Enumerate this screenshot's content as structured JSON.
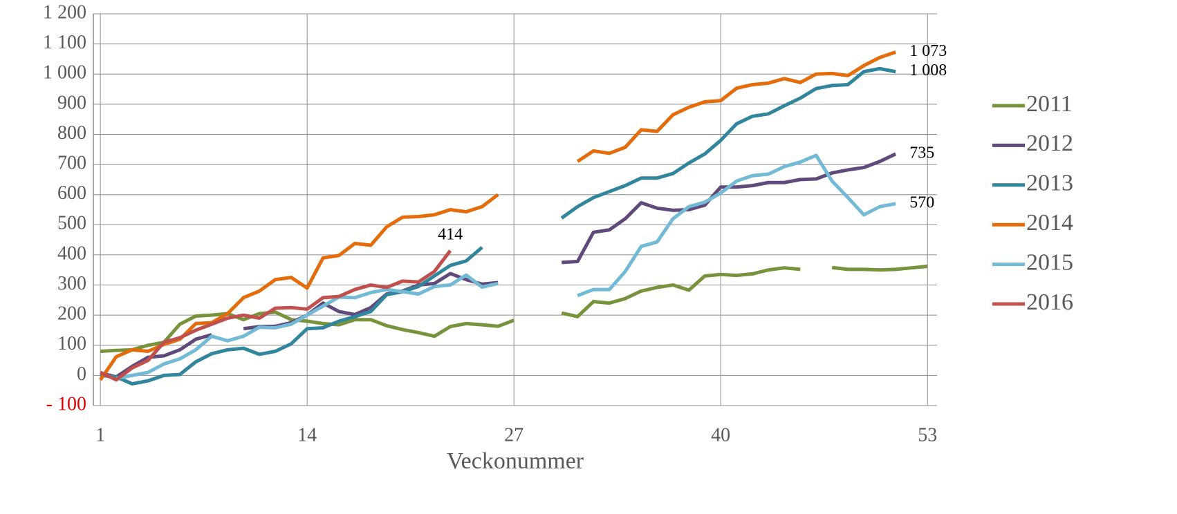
{
  "chart_data": {
    "type": "line",
    "x_label": "Veckonummer",
    "x": [
      1,
      2,
      3,
      4,
      5,
      6,
      7,
      8,
      9,
      10,
      11,
      12,
      13,
      14,
      15,
      16,
      17,
      18,
      19,
      20,
      21,
      22,
      23,
      24,
      25,
      26,
      27,
      28,
      29,
      30,
      31,
      32,
      33,
      34,
      35,
      36,
      37,
      38,
      39,
      40,
      41,
      42,
      43,
      44,
      45,
      46,
      47,
      48,
      49,
      50,
      51,
      52,
      53
    ],
    "xlim": [
      0.56,
      53.6
    ],
    "xticks": [
      1,
      14,
      27,
      40,
      53
    ],
    "ylim": [
      -100,
      1200
    ],
    "yticks": [
      {
        "value": -100,
        "label": "- 100"
      },
      0,
      100,
      200,
      300,
      400,
      500,
      600,
      700,
      800,
      900,
      {
        "value": 1000,
        "label": "1 000"
      },
      {
        "value": 1100,
        "label": "1 100"
      },
      {
        "value": 1200,
        "label": "1 200"
      }
    ],
    "negative_tick_color": "#e00000",
    "grid": true,
    "legend": "right",
    "series": [
      {
        "name": "2011",
        "color": "#77933c",
        "values": [
          80,
          83,
          85,
          100,
          110,
          170,
          197,
          200,
          205,
          185,
          205,
          210,
          185,
          180,
          172,
          168,
          185,
          185,
          165,
          152,
          142,
          130,
          162,
          172,
          168,
          163,
          183,
          null,
          null,
          207,
          195,
          245,
          240,
          255,
          280,
          292,
          300,
          283,
          330,
          335,
          332,
          337,
          350,
          357,
          352,
          null,
          358,
          352,
          352,
          350,
          352,
          357,
          362
        ]
      },
      {
        "name": "2012",
        "color": "#604a7b",
        "values": [
          8,
          -5,
          30,
          60,
          65,
          85,
          120,
          135,
          null,
          155,
          162,
          163,
          175,
          200,
          240,
          212,
          202,
          225,
          270,
          280,
          300,
          305,
          338,
          318,
          303,
          308,
          null,
          null,
          null,
          375,
          378,
          475,
          483,
          520,
          573,
          555,
          548,
          550,
          565,
          625,
          625,
          630,
          640,
          640,
          650,
          652,
          672,
          682,
          690,
          710,
          735,
          null,
          null
        ],
        "value_labels": [
          null,
          null,
          null,
          null,
          null,
          null,
          null,
          null,
          null,
          null,
          null,
          null,
          null,
          null,
          null,
          null,
          null,
          null,
          null,
          null,
          null,
          null,
          null,
          null,
          null,
          null,
          null,
          null,
          null,
          null,
          null,
          null,
          null,
          null,
          null,
          null,
          null,
          null,
          null,
          null,
          null,
          null,
          null,
          null,
          null,
          null,
          null,
          null,
          null,
          null,
          "735",
          null,
          null
        ]
      },
      {
        "name": "2013",
        "color": "#31859c",
        "values": [
          0,
          -5,
          -28,
          -18,
          0,
          3,
          45,
          72,
          85,
          90,
          70,
          80,
          105,
          155,
          158,
          180,
          195,
          212,
          268,
          278,
          295,
          330,
          365,
          380,
          425,
          null,
          null,
          null,
          null,
          522,
          560,
          590,
          610,
          630,
          655,
          655,
          670,
          705,
          735,
          780,
          835,
          860,
          868,
          895,
          920,
          952,
          962,
          965,
          1008,
          1018,
          1008,
          null,
          null
        ],
        "value_labels": [
          null,
          null,
          null,
          null,
          null,
          null,
          null,
          null,
          null,
          null,
          null,
          null,
          null,
          null,
          null,
          null,
          null,
          null,
          null,
          null,
          null,
          null,
          null,
          null,
          null,
          null,
          null,
          null,
          null,
          null,
          null,
          null,
          null,
          null,
          null,
          null,
          null,
          null,
          null,
          null,
          null,
          null,
          null,
          null,
          null,
          null,
          null,
          null,
          null,
          null,
          "1 008",
          null,
          null
        ]
      },
      {
        "name": "2014",
        "color": "#e46c0a",
        "values": [
          -15,
          62,
          85,
          80,
          103,
          120,
          172,
          175,
          205,
          258,
          280,
          318,
          325,
          290,
          390,
          398,
          438,
          432,
          493,
          525,
          527,
          533,
          550,
          543,
          560,
          600,
          null,
          null,
          null,
          null,
          710,
          745,
          737,
          757,
          815,
          810,
          865,
          890,
          908,
          912,
          953,
          965,
          970,
          985,
          972,
          1000,
          1002,
          995,
          1028,
          1055,
          1073,
          null,
          null
        ],
        "value_labels": [
          null,
          null,
          null,
          null,
          null,
          null,
          null,
          null,
          null,
          null,
          null,
          null,
          null,
          null,
          null,
          null,
          null,
          null,
          null,
          null,
          null,
          null,
          null,
          null,
          null,
          null,
          null,
          null,
          null,
          null,
          null,
          null,
          null,
          null,
          null,
          null,
          null,
          null,
          null,
          null,
          null,
          null,
          null,
          null,
          null,
          null,
          null,
          null,
          null,
          null,
          "1 073",
          null,
          null
        ]
      },
      {
        "name": "2015",
        "color": "#72bad6",
        "values": [
          null,
          -10,
          0,
          10,
          38,
          55,
          85,
          130,
          115,
          130,
          160,
          158,
          170,
          200,
          230,
          260,
          258,
          275,
          285,
          278,
          270,
          295,
          300,
          333,
          293,
          305,
          null,
          null,
          null,
          null,
          265,
          285,
          285,
          345,
          428,
          443,
          520,
          560,
          575,
          605,
          645,
          663,
          668,
          693,
          708,
          730,
          645,
          590,
          533,
          560,
          570,
          null,
          null
        ],
        "value_labels": [
          null,
          null,
          null,
          null,
          null,
          null,
          null,
          null,
          null,
          null,
          null,
          null,
          null,
          null,
          null,
          null,
          null,
          null,
          null,
          null,
          null,
          null,
          null,
          null,
          null,
          null,
          null,
          null,
          null,
          null,
          null,
          null,
          null,
          null,
          null,
          null,
          null,
          null,
          null,
          null,
          null,
          null,
          null,
          null,
          null,
          null,
          null,
          null,
          null,
          null,
          "570",
          null,
          null
        ]
      },
      {
        "name": "2016",
        "color": "#c0504d",
        "values": [
          10,
          -15,
          25,
          50,
          110,
          125,
          150,
          170,
          190,
          200,
          190,
          223,
          225,
          220,
          258,
          262,
          285,
          300,
          292,
          313,
          310,
          345,
          414,
          null,
          null,
          null,
          null,
          null,
          null,
          null,
          null,
          null,
          null,
          null,
          null,
          null,
          null,
          null,
          null,
          null,
          null,
          null,
          null,
          null,
          null,
          null,
          null,
          null,
          null,
          null,
          null,
          null,
          null
        ],
        "value_labels": [
          null,
          null,
          null,
          null,
          null,
          null,
          null,
          null,
          null,
          null,
          null,
          null,
          null,
          null,
          null,
          null,
          null,
          null,
          null,
          null,
          null,
          null,
          "414",
          null,
          null,
          null,
          null,
          null,
          null,
          null,
          null,
          null,
          null,
          null,
          null,
          null,
          null,
          null,
          null,
          null,
          null,
          null,
          null,
          null,
          null,
          null,
          null,
          null,
          null,
          null,
          null,
          null,
          null
        ]
      }
    ]
  }
}
